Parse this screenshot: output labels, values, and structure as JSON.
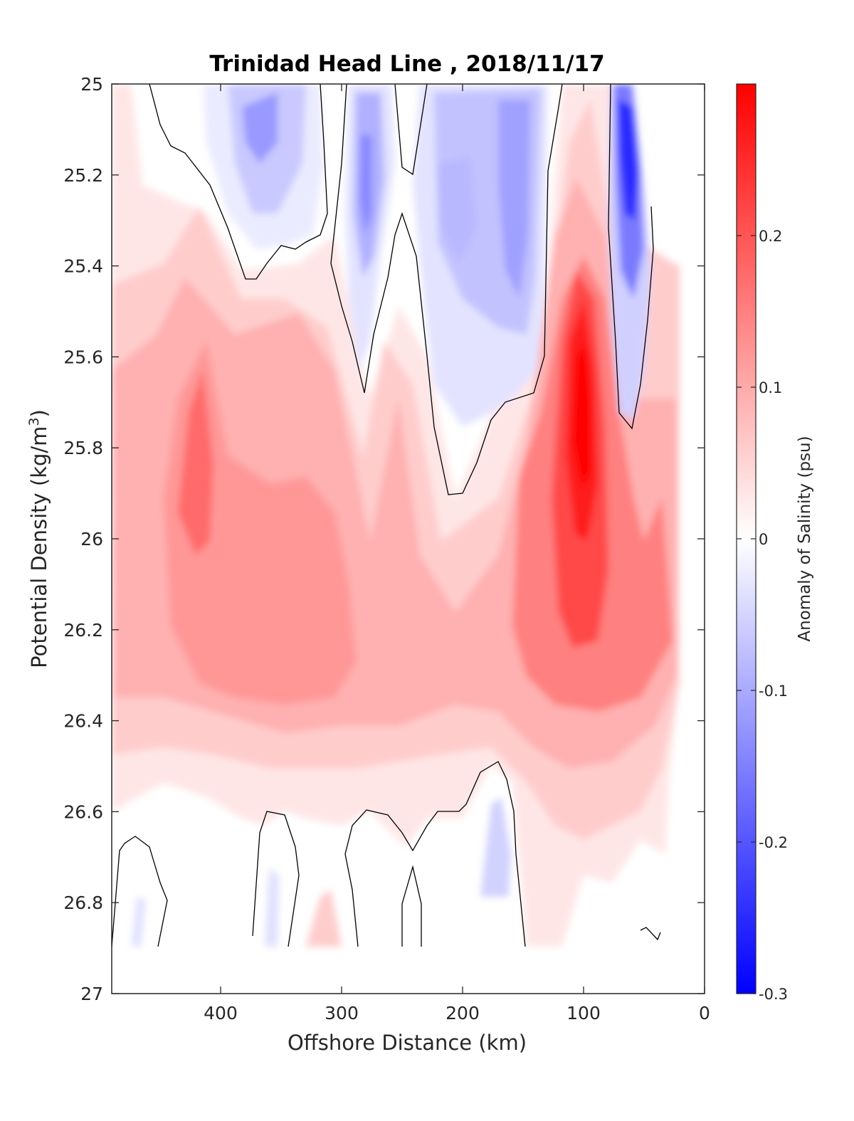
{
  "chart_data": {
    "type": "heatmap",
    "title": "Trinidad Head Line , 2018/11/17",
    "xlabel": "Offshore Distance (km)",
    "ylabel_text": "Potential Density (kg/m",
    "ylabel_sup": "3",
    "ylabel_close": ")",
    "colorbar_label": "Anomaly of Salinity (psu)",
    "xlim": [
      490,
      0
    ],
    "x_reversed": true,
    "ylim": [
      25,
      27
    ],
    "y_reversed": true,
    "x_ticks": [
      400,
      300,
      200,
      100,
      0
    ],
    "x_tick_labels": [
      "400",
      "300",
      "200",
      "100",
      "0"
    ],
    "y_ticks": [
      25,
      25.2,
      25.4,
      25.6,
      25.8,
      26,
      26.2,
      26.4,
      26.6,
      26.8,
      27
    ],
    "y_tick_labels": [
      "25",
      "25.2",
      "25.4",
      "25.6",
      "25.8",
      "26",
      "26.2",
      "26.4",
      "26.6",
      "26.8",
      "27"
    ],
    "colorbar_range": [
      -0.3,
      0.3
    ],
    "colorbar_ticks": [
      0.2,
      0.1,
      0,
      -0.1,
      -0.2,
      -0.3
    ],
    "colorbar_tick_labels": [
      "0.2",
      "0.1",
      "0",
      "-0.1",
      "-0.2",
      "-0.3"
    ],
    "contour_interval": 0.025,
    "zero_contour_color": "#000000",
    "colormap": {
      "negative": "#0000ff",
      "zero": "#ffffff",
      "positive": "#ff0000"
    },
    "data_extent": {
      "x_max": 490,
      "x_min": 20,
      "y_min": 25,
      "y_max": 26.9
    },
    "features": [
      {
        "name": "offshore positive lens",
        "x": 415,
        "y": 25.75,
        "value": 0.15
      },
      {
        "name": "offshore mid positive",
        "x": 350,
        "y": 26.05,
        "value": 0.1
      },
      {
        "name": "strong nearshore positive core",
        "x": 102,
        "y": 25.7,
        "value": 0.29
      },
      {
        "name": "shallow negative cell",
        "x": 360,
        "y": 25.12,
        "value": -0.11
      },
      {
        "name": "negative tongue",
        "x": 280,
        "y": 25.3,
        "value": -0.13
      },
      {
        "name": "broad negative patch",
        "x": 180,
        "y": 25.3,
        "value": -0.12
      },
      {
        "name": "strong nearshore negative core",
        "x": 62,
        "y": 25.25,
        "value": -0.28
      },
      {
        "name": "deep negative patch",
        "x": 165,
        "y": 26.75,
        "value": -0.07
      }
    ]
  }
}
